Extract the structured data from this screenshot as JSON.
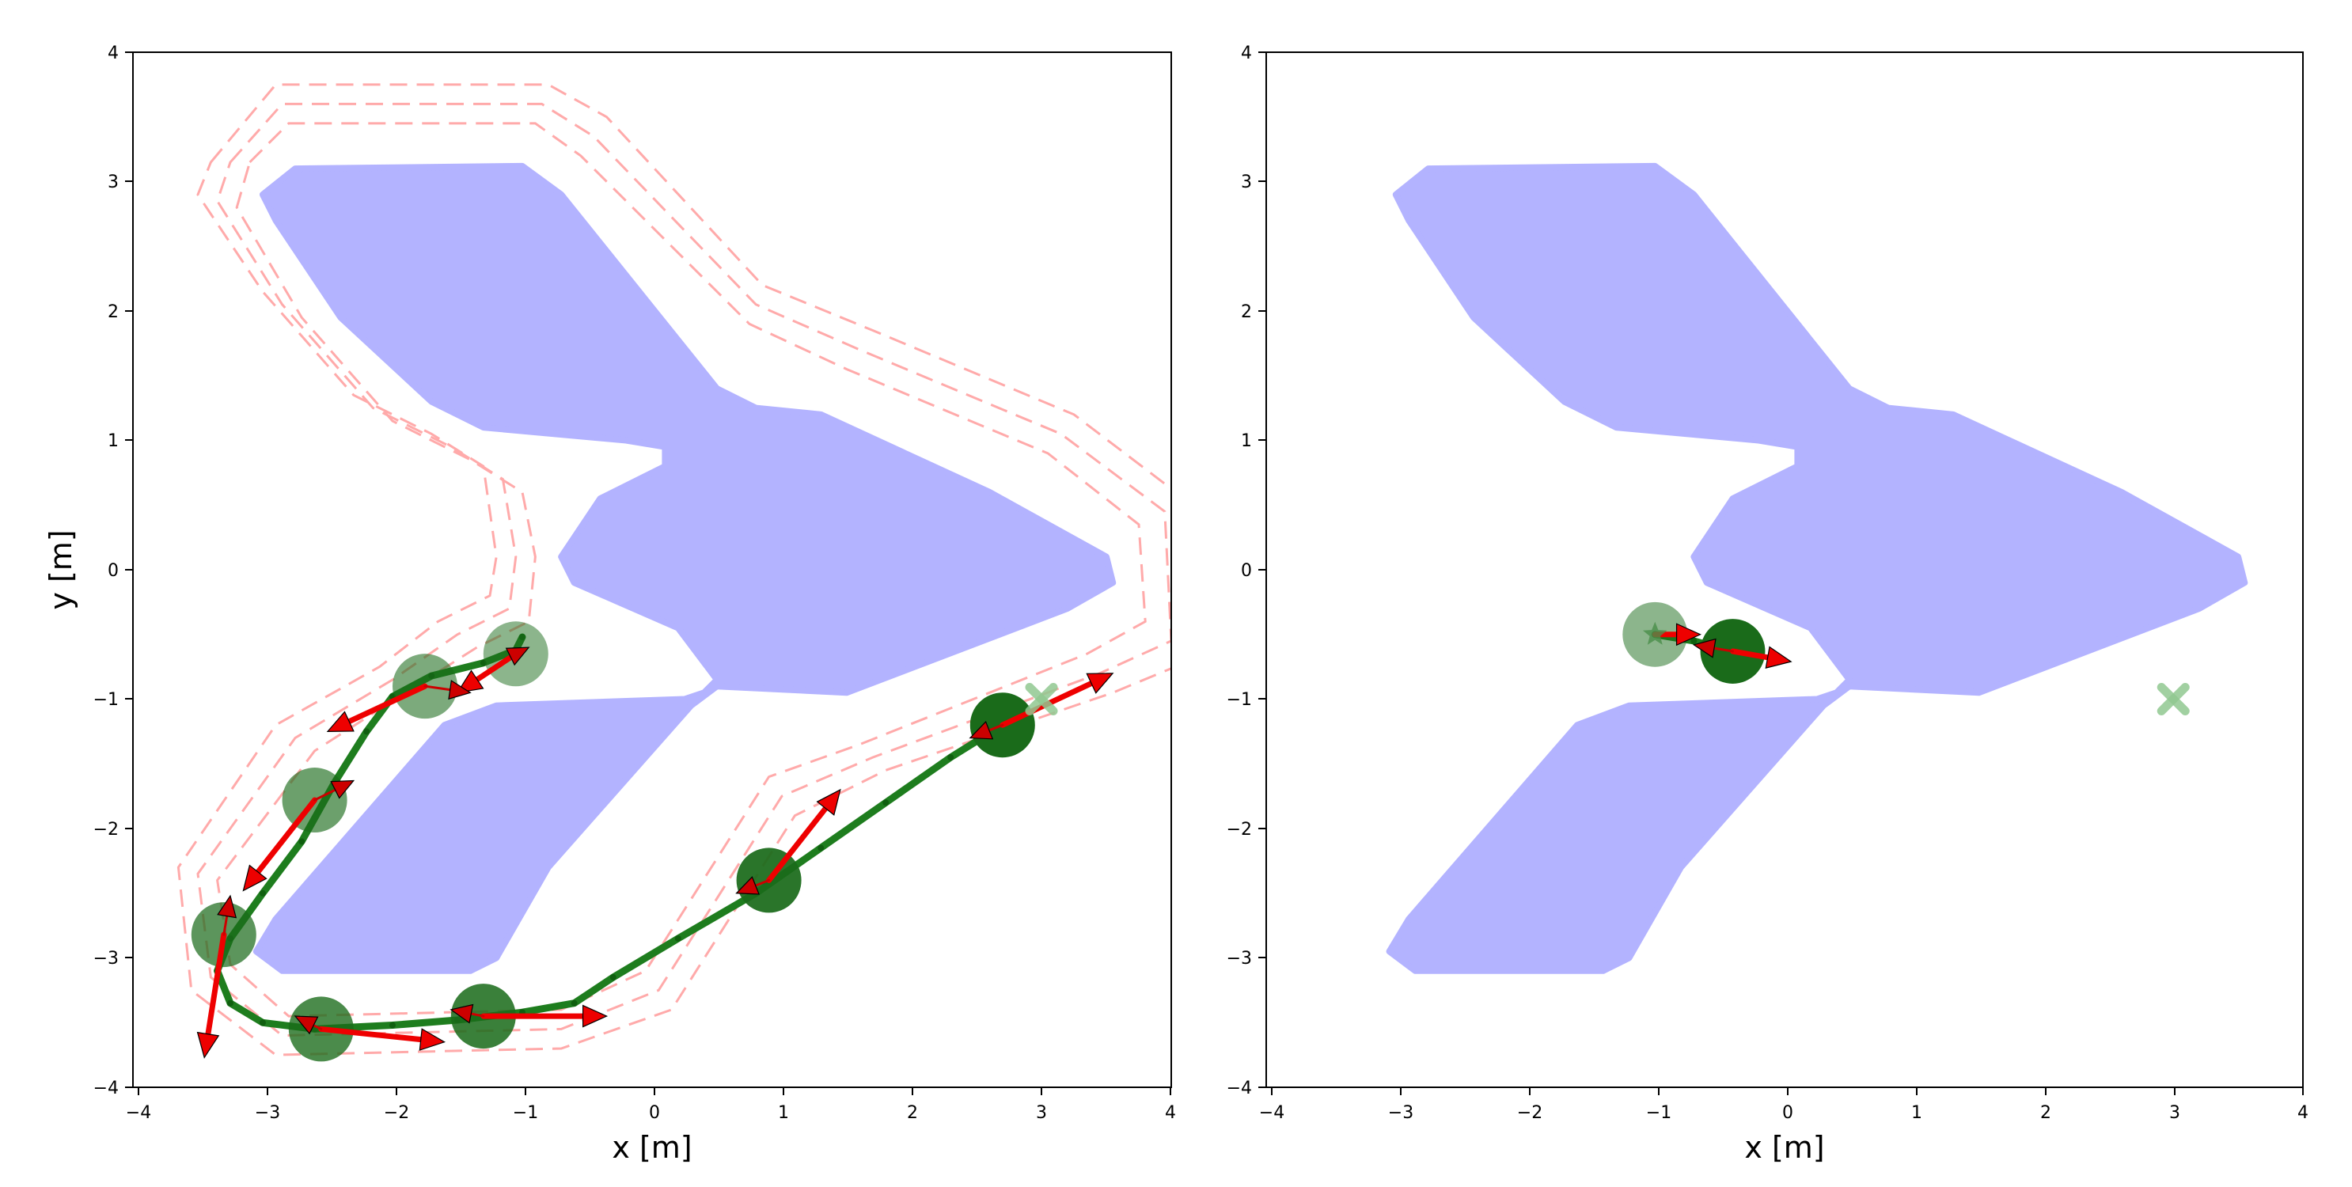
{
  "chart_data": [
    {
      "type": "scatter",
      "title": "",
      "xlabel": "x [m]",
      "ylabel": "y [m]",
      "xlim": [
        -4,
        4
      ],
      "ylim": [
        -4,
        4
      ],
      "xticks": [
        "−4",
        "−3",
        "−2",
        "−1",
        "0",
        "1",
        "2",
        "3",
        "4"
      ],
      "yticks": [
        "4",
        "3",
        "2",
        "1",
        "0",
        "−1",
        "−2",
        "−3",
        "−4"
      ],
      "grid": false,
      "colors": {
        "obstacle": "#b3b3ff",
        "robot": "#1a6b1a",
        "trajectory": "#1e7d1e",
        "arrow": "#ee0000",
        "boundary": "#ffaaaa",
        "goal": "#90c890"
      },
      "obstacle": [
        [
          -3.0,
          2.9
        ],
        [
          -2.75,
          3.1
        ],
        [
          -1.0,
          3.12
        ],
        [
          -0.7,
          2.9
        ],
        [
          0.5,
          1.4
        ],
        [
          0.8,
          1.25
        ],
        [
          1.3,
          1.2
        ],
        [
          2.6,
          0.6
        ],
        [
          3.5,
          0.1
        ],
        [
          3.55,
          -0.1
        ],
        [
          3.2,
          -0.3
        ],
        [
          1.5,
          -0.95
        ],
        [
          0.5,
          -0.9
        ],
        [
          0.3,
          -1.05
        ],
        [
          -0.8,
          -2.3
        ],
        [
          -1.2,
          -3.0
        ],
        [
          -1.4,
          -3.1
        ],
        [
          -2.85,
          -3.1
        ],
        [
          -3.05,
          -2.95
        ],
        [
          -2.9,
          -2.7
        ],
        [
          -1.6,
          -1.2
        ],
        [
          -1.2,
          -1.05
        ],
        [
          0.25,
          -1.0
        ],
        [
          0.4,
          -0.95
        ],
        [
          0.5,
          -0.85
        ],
        [
          0.2,
          -0.45
        ],
        [
          -0.6,
          -0.1
        ],
        [
          -0.7,
          0.1
        ],
        [
          -0.4,
          0.55
        ],
        [
          0.1,
          0.8
        ],
        [
          0.1,
          0.95
        ],
        [
          -0.2,
          1.0
        ],
        [
          -1.3,
          1.1
        ],
        [
          -1.7,
          1.3
        ],
        [
          -2.4,
          1.95
        ],
        [
          -2.9,
          2.7
        ]
      ],
      "safety_boundaries": [
        [
          [
            -3.1,
            3.15
          ],
          [
            -2.8,
            3.45
          ],
          [
            -0.9,
            3.45
          ],
          [
            -0.55,
            3.2
          ],
          [
            0.75,
            1.9
          ],
          [
            1.5,
            1.55
          ],
          [
            3.05,
            0.9
          ],
          [
            3.75,
            0.35
          ],
          [
            3.8,
            -0.4
          ],
          [
            3.35,
            -0.65
          ],
          [
            1.6,
            -1.35
          ],
          [
            0.9,
            -1.6
          ],
          [
            -0.05,
            -3.1
          ],
          [
            -0.7,
            -3.4
          ],
          [
            -2.8,
            -3.45
          ],
          [
            -3.25,
            -3.05
          ],
          [
            -3.35,
            -2.4
          ],
          [
            -2.6,
            -1.4
          ],
          [
            -1.9,
            -0.95
          ],
          [
            -1.35,
            -0.6
          ],
          [
            -0.95,
            -0.4
          ],
          [
            -0.9,
            0.1
          ],
          [
            -1.0,
            0.6
          ],
          [
            -1.4,
            0.85
          ],
          [
            -2.0,
            1.15
          ],
          [
            -2.7,
            1.95
          ],
          [
            -3.2,
            2.8
          ]
        ],
        [
          [
            -3.25,
            3.15
          ],
          [
            -2.85,
            3.6
          ],
          [
            -0.85,
            3.6
          ],
          [
            -0.45,
            3.35
          ],
          [
            0.8,
            2.05
          ],
          [
            1.6,
            1.7
          ],
          [
            3.15,
            1.05
          ],
          [
            3.95,
            0.45
          ],
          [
            4.0,
            -0.55
          ],
          [
            3.45,
            -0.8
          ],
          [
            1.7,
            -1.45
          ],
          [
            1.0,
            -1.75
          ],
          [
            0.05,
            -3.25
          ],
          [
            -0.7,
            -3.55
          ],
          [
            -2.85,
            -3.6
          ],
          [
            -3.4,
            -3.15
          ],
          [
            -3.5,
            -2.35
          ],
          [
            -2.75,
            -1.3
          ],
          [
            -2.0,
            -0.85
          ],
          [
            -1.5,
            -0.5
          ],
          [
            -1.1,
            -0.3
          ],
          [
            -1.05,
            0.1
          ],
          [
            -1.15,
            0.7
          ],
          [
            -1.55,
            0.95
          ],
          [
            -2.15,
            1.25
          ],
          [
            -2.85,
            2.05
          ],
          [
            -3.35,
            2.85
          ]
        ],
        [
          [
            -3.4,
            3.15
          ],
          [
            -2.9,
            3.75
          ],
          [
            -0.8,
            3.75
          ],
          [
            -0.35,
            3.5
          ],
          [
            0.85,
            2.2
          ],
          [
            1.7,
            1.85
          ],
          [
            3.25,
            1.2
          ],
          [
            4.1,
            0.55
          ],
          [
            4.15,
            -0.7
          ],
          [
            3.55,
            -0.95
          ],
          [
            1.8,
            -1.55
          ],
          [
            1.1,
            -1.9
          ],
          [
            0.15,
            -3.4
          ],
          [
            -0.7,
            -3.7
          ],
          [
            -2.9,
            -3.75
          ],
          [
            -3.55,
            -3.25
          ],
          [
            -3.65,
            -2.3
          ],
          [
            -2.9,
            -1.2
          ],
          [
            -2.1,
            -0.75
          ],
          [
            -1.65,
            -0.4
          ],
          [
            -1.25,
            -0.2
          ],
          [
            -1.2,
            0.1
          ],
          [
            -1.3,
            0.8
          ],
          [
            -1.7,
            1.05
          ],
          [
            -2.3,
            1.35
          ],
          [
            -3.0,
            2.15
          ],
          [
            -3.5,
            2.9
          ]
        ]
      ],
      "trajectory": [
        [
          -1.0,
          -0.52
        ],
        [
          -1.05,
          -0.62
        ],
        [
          -1.3,
          -0.72
        ],
        [
          -1.7,
          -0.82
        ],
        [
          -2.0,
          -0.98
        ],
        [
          -2.2,
          -1.25
        ],
        [
          -2.45,
          -1.65
        ],
        [
          -2.7,
          -2.1
        ],
        [
          -3.0,
          -2.5
        ],
        [
          -3.25,
          -2.85
        ],
        [
          -3.35,
          -3.1
        ],
        [
          -3.25,
          -3.35
        ],
        [
          -3.0,
          -3.5
        ],
        [
          -2.6,
          -3.55
        ],
        [
          -2.0,
          -3.52
        ],
        [
          -1.5,
          -3.48
        ],
        [
          -1.0,
          -3.42
        ],
        [
          -0.6,
          -3.35
        ],
        [
          -0.3,
          -3.15
        ],
        [
          0.2,
          -2.85
        ],
        [
          0.8,
          -2.5
        ],
        [
          1.3,
          -2.15
        ],
        [
          1.8,
          -1.8
        ],
        [
          2.3,
          -1.45
        ],
        [
          2.7,
          -1.2
        ]
      ],
      "robot_positions": [
        {
          "x": -1.05,
          "y": -0.65,
          "vx": -0.45,
          "vy": -0.3,
          "ux": 0.1,
          "uy": 0.05
        },
        {
          "x": -1.75,
          "y": -0.9,
          "vx": -0.75,
          "vy": -0.35,
          "ux": 0.35,
          "uy": -0.05
        },
        {
          "x": -2.6,
          "y": -1.78,
          "vx": -0.55,
          "vy": -0.7,
          "ux": 0.3,
          "uy": 0.15
        },
        {
          "x": -3.3,
          "y": -2.82,
          "vx": -0.15,
          "vy": -0.95,
          "ux": 0.05,
          "uy": 0.3
        },
        {
          "x": -2.55,
          "y": -3.55,
          "vx": 0.95,
          "vy": -0.1,
          "ux": -0.2,
          "uy": 0.1
        },
        {
          "x": -1.3,
          "y": -3.45,
          "vx": 0.95,
          "vy": 0.0,
          "ux": -0.25,
          "uy": 0.05
        },
        {
          "x": 0.9,
          "y": -2.4,
          "vx": 0.55,
          "vy": 0.7,
          "ux": -0.25,
          "uy": -0.1
        },
        {
          "x": 2.7,
          "y": -1.2,
          "vx": 0.85,
          "vy": 0.4,
          "ux": -0.25,
          "uy": -0.1
        }
      ],
      "goal": {
        "x": 3.0,
        "y": -1.0
      }
    },
    {
      "type": "scatter",
      "title": "",
      "xlabel": "x [m]",
      "ylabel": "",
      "xlim": [
        -4,
        4
      ],
      "ylim": [
        -4,
        4
      ],
      "xticks": [
        "−4",
        "−3",
        "−2",
        "−1",
        "0",
        "1",
        "2",
        "3",
        "4"
      ],
      "yticks": [
        "4",
        "3",
        "2",
        "1",
        "0",
        "−1",
        "−2",
        "−3",
        "−4"
      ],
      "grid": false,
      "colors": {
        "obstacle": "#b3b3ff",
        "robot": "#1a6b1a",
        "trajectory": "#1e7d1e",
        "arrow": "#ee0000",
        "goal": "#90c890"
      },
      "obstacle": [
        [
          -3.0,
          2.9
        ],
        [
          -2.75,
          3.1
        ],
        [
          -1.0,
          3.12
        ],
        [
          -0.7,
          2.9
        ],
        [
          0.5,
          1.4
        ],
        [
          0.8,
          1.25
        ],
        [
          1.3,
          1.2
        ],
        [
          2.6,
          0.6
        ],
        [
          3.5,
          0.1
        ],
        [
          3.55,
          -0.1
        ],
        [
          3.2,
          -0.3
        ],
        [
          1.5,
          -0.95
        ],
        [
          0.5,
          -0.9
        ],
        [
          0.3,
          -1.05
        ],
        [
          -0.8,
          -2.3
        ],
        [
          -1.2,
          -3.0
        ],
        [
          -1.4,
          -3.1
        ],
        [
          -2.85,
          -3.1
        ],
        [
          -3.05,
          -2.95
        ],
        [
          -2.9,
          -2.7
        ],
        [
          -1.6,
          -1.2
        ],
        [
          -1.2,
          -1.05
        ],
        [
          0.25,
          -1.0
        ],
        [
          0.4,
          -0.95
        ],
        [
          0.5,
          -0.85
        ],
        [
          0.2,
          -0.45
        ],
        [
          -0.6,
          -0.1
        ],
        [
          -0.7,
          0.1
        ],
        [
          -0.4,
          0.55
        ],
        [
          0.1,
          0.8
        ],
        [
          0.1,
          0.95
        ],
        [
          -0.2,
          1.0
        ],
        [
          -1.3,
          1.1
        ],
        [
          -1.7,
          1.3
        ],
        [
          -2.4,
          1.95
        ],
        [
          -2.9,
          2.7
        ]
      ],
      "safety_boundaries": [],
      "trajectory": [
        [
          -1.0,
          -0.5
        ],
        [
          -0.7,
          -0.55
        ],
        [
          -0.45,
          -0.62
        ]
      ],
      "robot_positions": [
        {
          "x": -1.0,
          "y": -0.5,
          "vx": 0.35,
          "vy": 0.0,
          "ux": 0.0,
          "uy": 0.0
        },
        {
          "x": -0.4,
          "y": -0.63,
          "vx": 0.45,
          "vy": -0.08,
          "ux": -0.3,
          "uy": 0.05
        }
      ],
      "start_marker": {
        "x": -1.0,
        "y": -0.5
      },
      "goal": {
        "x": 3.0,
        "y": -1.0
      }
    }
  ]
}
